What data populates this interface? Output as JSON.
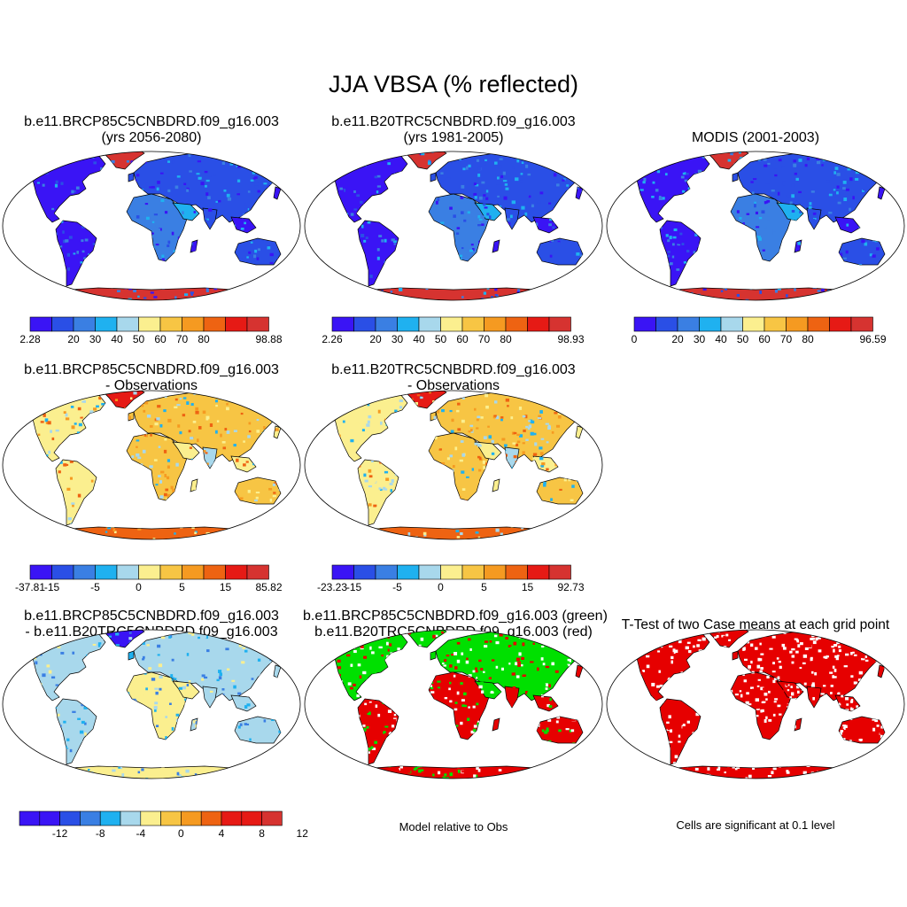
{
  "title": "JJA VBSA (% reflected)",
  "palette": [
    "#3a14f5",
    "#2a4fe6",
    "#3a7fe3",
    "#1fb1f0",
    "#a8d8ec",
    "#fbef8f",
    "#f7c544",
    "#f59a21",
    "#ee6312",
    "#e61a15",
    "#d63330"
  ],
  "map_colors": {
    "ocean": "#ffffff",
    "coast": "#000000",
    "signif": "#e60000",
    "green": "#00e000",
    "red": "#e60000"
  },
  "panels": [
    {
      "id": "p1",
      "title1": "b.e11.BRCP85C5CNBDRD.f09_g16.003",
      "title2": "(yrs 2056-2080)",
      "chart_data": {
        "type": "map",
        "projection": "Robinson",
        "kind": "absolute",
        "colorbar": {
          "min_label": "2.28",
          "max_label": "98.88",
          "tick_labels": [
            "20",
            "30",
            "40",
            "50",
            "60",
            "70",
            "80"
          ]
        }
      }
    },
    {
      "id": "p2",
      "title1": "b.e11.B20TRC5CNBDRD.f09_g16.003",
      "title2": "(yrs 1981-2005)",
      "chart_data": {
        "type": "map",
        "projection": "Robinson",
        "kind": "absolute",
        "colorbar": {
          "min_label": "2.26",
          "max_label": "98.93",
          "tick_labels": [
            "20",
            "30",
            "40",
            "50",
            "60",
            "70",
            "80"
          ]
        }
      }
    },
    {
      "id": "p3",
      "title1": "MODIS (2001-2003)",
      "title2": "",
      "chart_data": {
        "type": "map",
        "projection": "Robinson",
        "kind": "absolute",
        "colorbar": {
          "min_label": "0",
          "max_label": "96.59",
          "tick_labels": [
            "20",
            "30",
            "40",
            "50",
            "60",
            "70",
            "80"
          ]
        }
      }
    },
    {
      "id": "p4",
      "title1": "b.e11.BRCP85C5CNBDRD.f09_g16.003",
      "title2": "- Observations",
      "chart_data": {
        "type": "map",
        "projection": "Robinson",
        "kind": "difference",
        "colorbar": {
          "min_label": "-37.81",
          "max_label": "85.82",
          "tick_labels": [
            "-15",
            "-5",
            "0",
            "5",
            "15"
          ]
        }
      }
    },
    {
      "id": "p5",
      "title1": "b.e11.B20TRC5CNBDRD.f09_g16.003",
      "title2": "- Observations",
      "chart_data": {
        "type": "map",
        "projection": "Robinson",
        "kind": "difference",
        "colorbar": {
          "min_label": "-23.23",
          "max_label": "92.73",
          "tick_labels": [
            "-15",
            "-5",
            "0",
            "5",
            "15"
          ]
        }
      }
    },
    {
      "id": "p6",
      "title1": "b.e11.BRCP85C5CNBDRD.f09_g16.003",
      "title2": "- b.e11.B20TRC5CNBDRD.f09_g16.003",
      "chart_data": {
        "type": "map",
        "projection": "Robinson",
        "kind": "model-difference",
        "colorbar": {
          "min_label": "",
          "max_label": "",
          "tick_labels": [
            "-12",
            "-8",
            "-4",
            "0",
            "4",
            "8",
            "12"
          ]
        }
      }
    },
    {
      "id": "p7",
      "title1": "b.e11.BRCP85C5CNBDRD.f09_g16.003 (green)",
      "title2": "b.e11.B20TRC5CNBDRD.f09_g16.003 (red)",
      "caption": "Model relative to Obs",
      "chart_data": {
        "type": "map",
        "projection": "Robinson",
        "kind": "comparison"
      }
    },
    {
      "id": "p8",
      "title1": "T-Test of two Case means at each grid point",
      "title2": "",
      "caption": "Cells are significant at 0.1 level",
      "chart_data": {
        "type": "map",
        "projection": "Robinson",
        "kind": "significance"
      }
    }
  ]
}
